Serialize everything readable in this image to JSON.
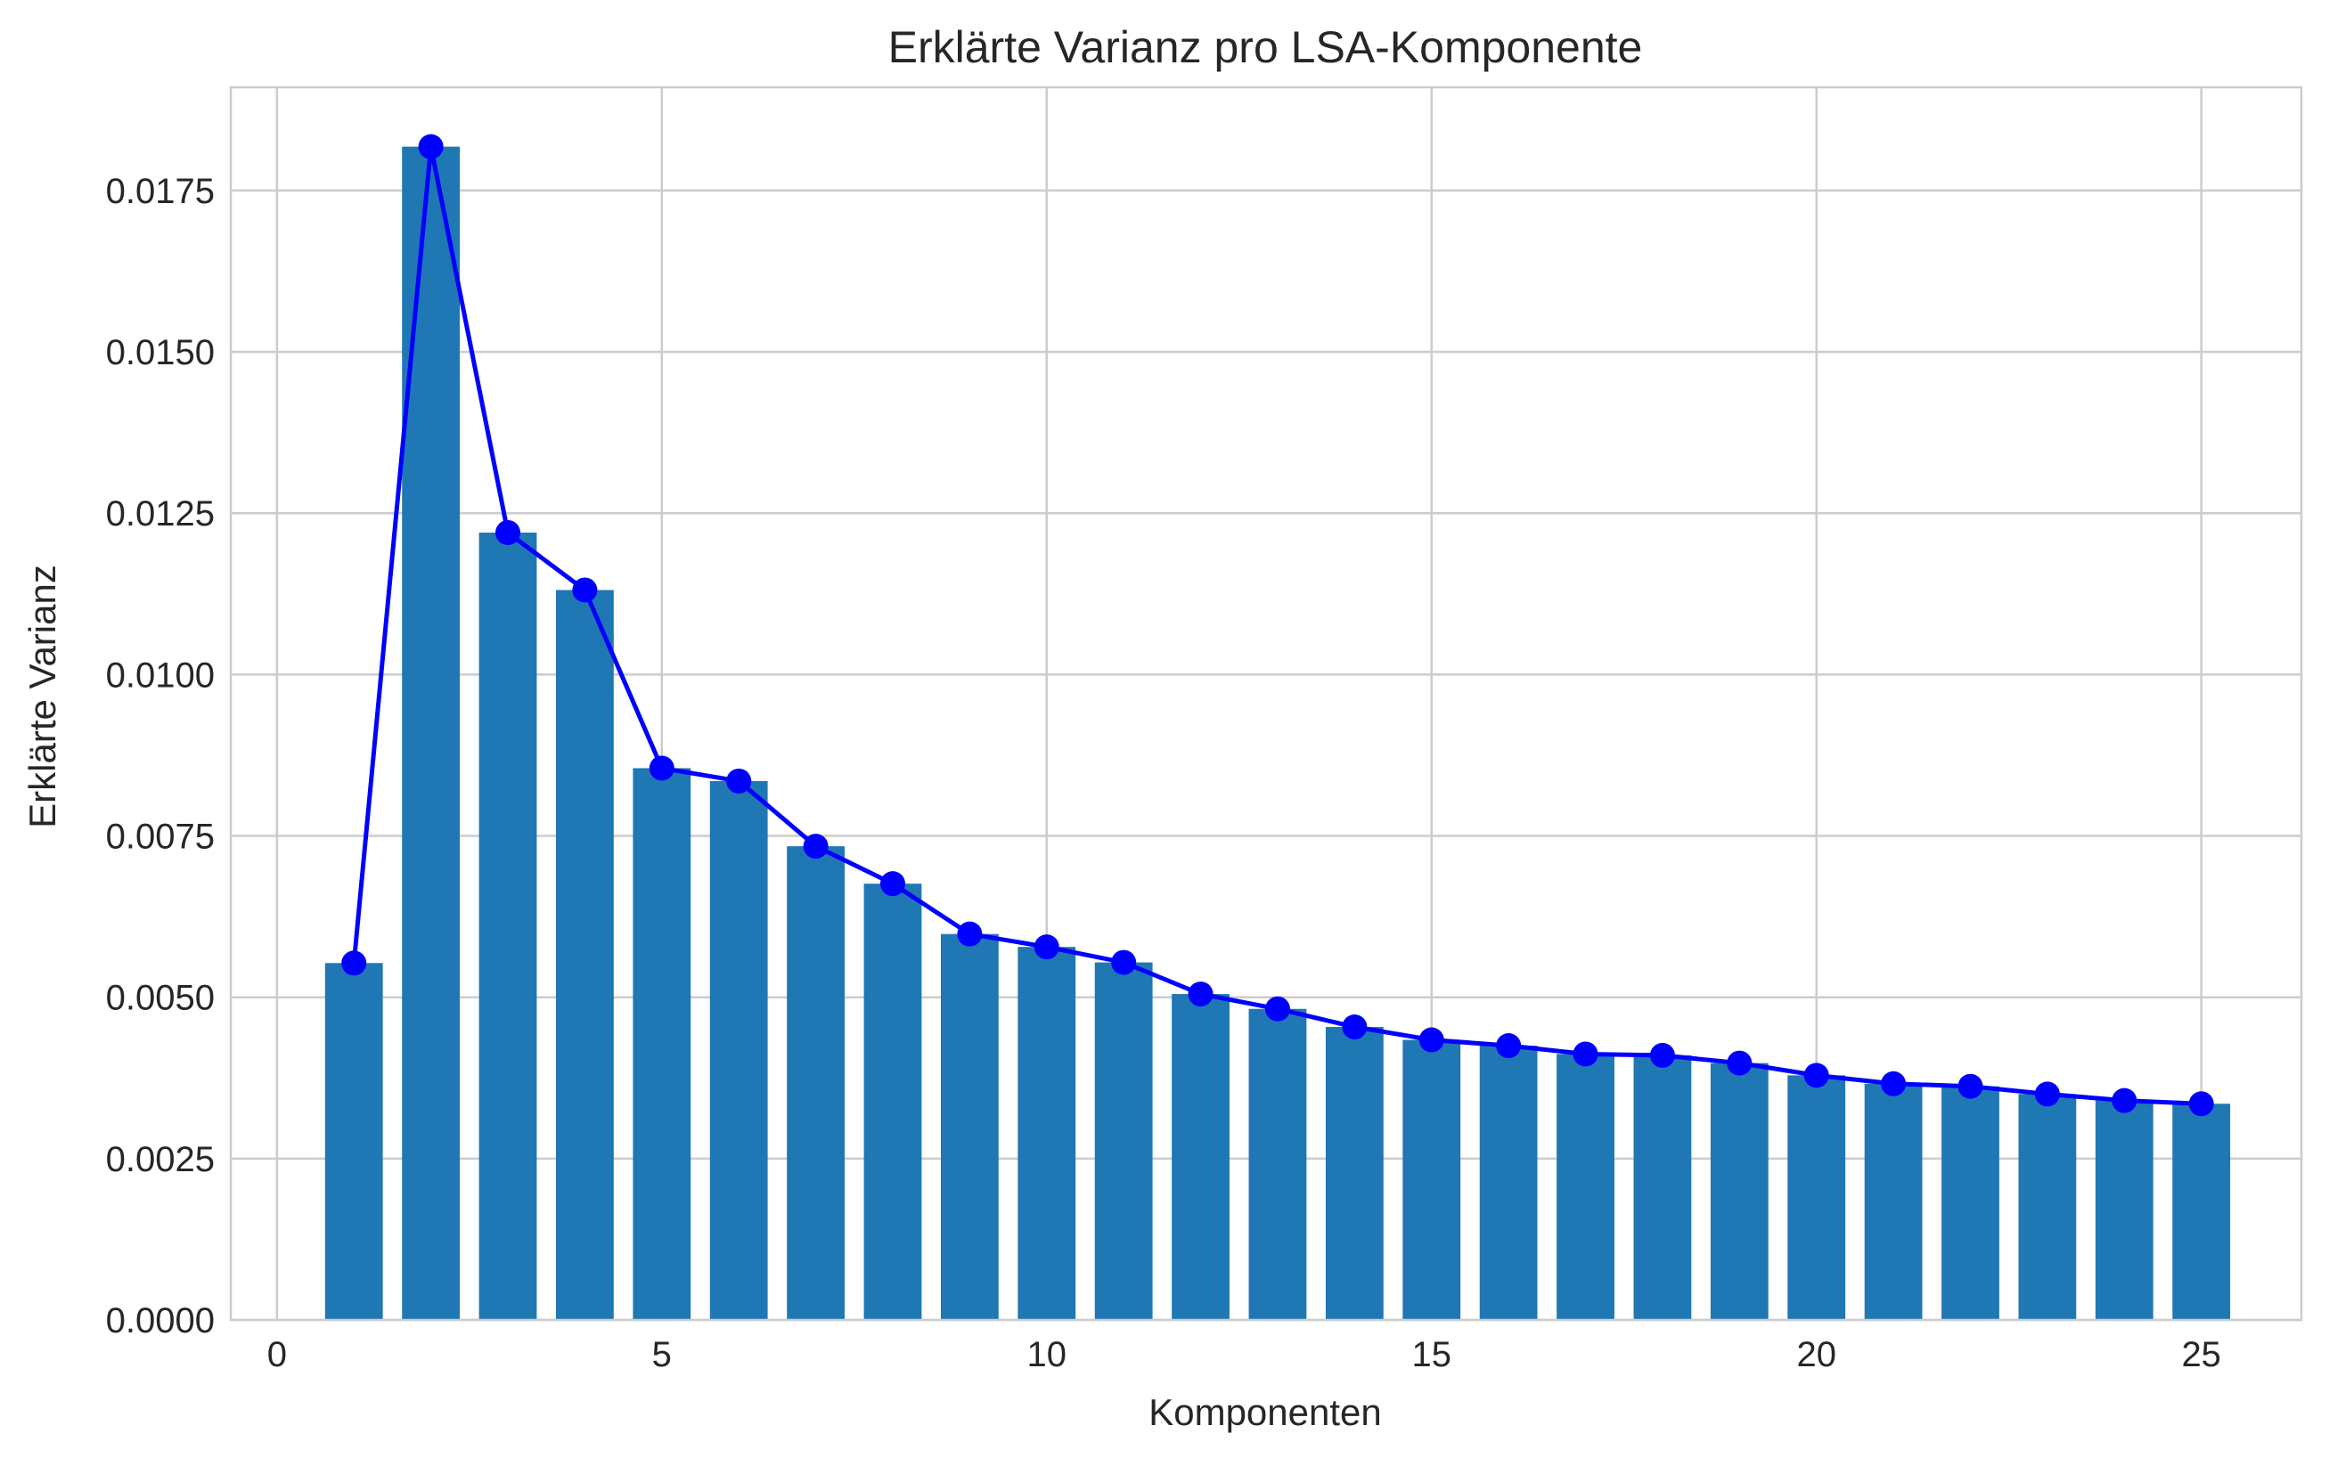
{
  "chart_data": {
    "type": "bar",
    "title": "Erklärte Varianz pro LSA-Komponente",
    "xlabel": "Komponenten",
    "ylabel": "Erklärte Varianz",
    "x": [
      1,
      2,
      3,
      4,
      5,
      6,
      7,
      8,
      9,
      10,
      11,
      12,
      13,
      14,
      15,
      16,
      17,
      18,
      19,
      20,
      21,
      22,
      23,
      24,
      25
    ],
    "values": [
      0.00553,
      0.01818,
      0.0122,
      0.01131,
      0.00855,
      0.00835,
      0.00734,
      0.00676,
      0.00598,
      0.00578,
      0.00554,
      0.00505,
      0.00482,
      0.00454,
      0.00434,
      0.00425,
      0.00412,
      0.0041,
      0.00398,
      0.00379,
      0.00366,
      0.00362,
      0.0035,
      0.0034,
      0.00335
    ],
    "series": [
      {
        "name": "bars",
        "style": "bar",
        "color": "#1f77b4"
      },
      {
        "name": "line",
        "style": "line-marker",
        "color": "#0000ff"
      }
    ],
    "xlim": [
      -0.6,
      26.3
    ],
    "ylim": [
      0,
      0.0191
    ],
    "xticks": [
      0,
      5,
      10,
      15,
      20,
      25
    ],
    "xtick_labels": [
      "0",
      "5",
      "10",
      "15",
      "20",
      "25"
    ],
    "yticks": [
      0,
      0.0025,
      0.005,
      0.0075,
      0.01,
      0.0125,
      0.015,
      0.0175
    ],
    "ytick_labels": [
      "0.0000",
      "0.0025",
      "0.0050",
      "0.0075",
      "0.0100",
      "0.0125",
      "0.0150",
      "0.0175"
    ],
    "grid": true,
    "legend": "none"
  }
}
